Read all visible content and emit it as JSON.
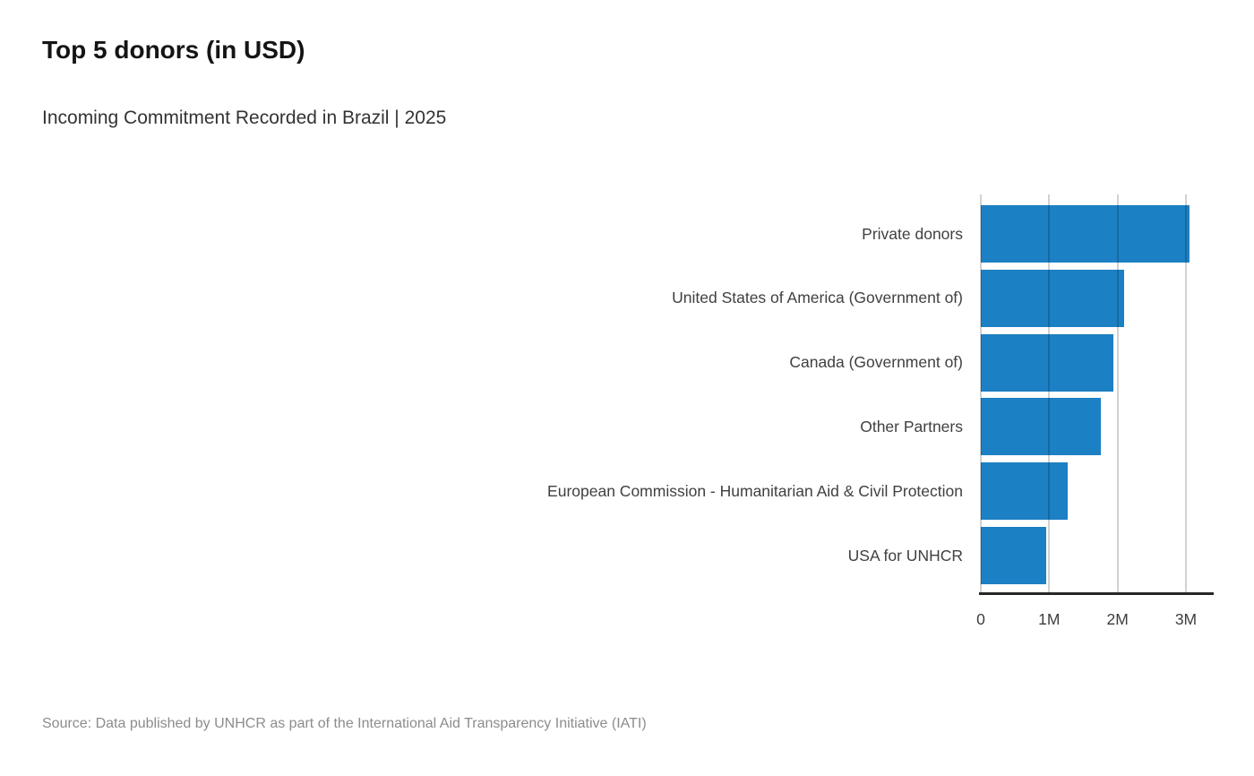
{
  "header": {
    "title": "Top 5 donors (in USD)",
    "subtitle": "Incoming Commitment Recorded in Brazil | 2025"
  },
  "chart_data": {
    "type": "bar",
    "orientation": "horizontal",
    "title": "Top 5 donors (in USD)",
    "subtitle": "Incoming Commitment Recorded in Brazil | 2025",
    "categories": [
      "Private donors",
      "United States of America (Government of)",
      "Canada (Government of)",
      "Other Partners",
      "European Commission - Humanitarian Aid & Civil Protection",
      "USA for UNHCR"
    ],
    "values": [
      3.05,
      2.1,
      1.94,
      1.75,
      1.27,
      0.95
    ],
    "unit": "USD millions",
    "xlabel": "",
    "ylabel": "",
    "xlim": [
      0,
      3.38
    ],
    "x_ticks": [
      {
        "value": 0,
        "label": "0"
      },
      {
        "value": 1,
        "label": "1M"
      },
      {
        "value": 2,
        "label": "2M"
      },
      {
        "value": 3,
        "label": "3M"
      }
    ],
    "grid": true,
    "legend": false,
    "bar_color": "#1c80c4",
    "axis_line_color": "#262626"
  },
  "footer": {
    "source": "Source: Data published by UNHCR as part of the International Aid Transparency Initiative (IATI)"
  }
}
